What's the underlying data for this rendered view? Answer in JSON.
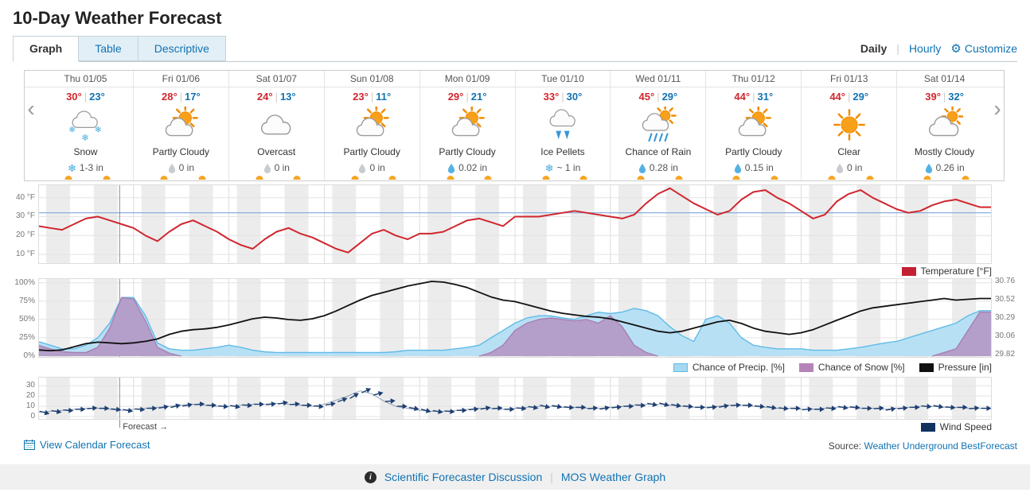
{
  "page": {
    "title": "10-Day Weather Forecast"
  },
  "tabs": [
    {
      "label": "Graph",
      "active": true
    },
    {
      "label": "Table",
      "active": false
    },
    {
      "label": "Descriptive",
      "active": false
    }
  ],
  "view_controls": {
    "daily_label": "Daily",
    "hourly_label": "Hourly",
    "customize_label": "Customize"
  },
  "nav": {
    "prev": "‹",
    "next": "›"
  },
  "separators": {
    "bar": "|"
  },
  "icons": {
    "gear": "⚙",
    "info": "i"
  },
  "days": [
    {
      "label": "Thu 01/05",
      "high": "30°",
      "low": "23°",
      "icon": "snow",
      "condition": "Snow",
      "precip_icon": "snowflake-blue",
      "precip": "1-3 in"
    },
    {
      "label": "Fri 01/06",
      "high": "28°",
      "low": "17°",
      "icon": "partly-cloudy",
      "condition": "Partly Cloudy",
      "precip_icon": "drop-gray",
      "precip": "0 in"
    },
    {
      "label": "Sat 01/07",
      "high": "24°",
      "low": "13°",
      "icon": "cloudy",
      "condition": "Overcast",
      "precip_icon": "drop-gray",
      "precip": "0 in"
    },
    {
      "label": "Sun 01/08",
      "high": "23°",
      "low": "11°",
      "icon": "partly-cloudy",
      "condition": "Partly Cloudy",
      "precip_icon": "drop-gray",
      "precip": "0 in"
    },
    {
      "label": "Mon 01/09",
      "high": "29°",
      "low": "21°",
      "icon": "partly-cloudy",
      "condition": "Partly Cloudy",
      "precip_icon": "drop-blue",
      "precip": "0.02 in"
    },
    {
      "label": "Tue 01/10",
      "high": "33°",
      "low": "30°",
      "icon": "ice-pellets",
      "condition": "Ice Pellets",
      "precip_icon": "snowflake-blue",
      "precip": "~ 1 in"
    },
    {
      "label": "Wed 01/11",
      "high": "45°",
      "low": "29°",
      "icon": "chance-rain",
      "condition": "Chance of Rain",
      "precip_icon": "drop-blue",
      "precip": "0.28 in"
    },
    {
      "label": "Thu 01/12",
      "high": "44°",
      "low": "31°",
      "icon": "partly-cloudy",
      "condition": "Partly Cloudy",
      "precip_icon": "drop-blue",
      "precip": "0.15 in"
    },
    {
      "label": "Fri 01/13",
      "high": "44°",
      "low": "29°",
      "icon": "clear",
      "condition": "Clear",
      "precip_icon": "drop-gray",
      "precip": "0 in"
    },
    {
      "label": "Sat 01/14",
      "high": "39°",
      "low": "32°",
      "icon": "mostly-cloudy",
      "condition": "Mostly Cloudy",
      "precip_icon": "drop-blue",
      "precip": "0.26 in"
    }
  ],
  "forecast_marker": {
    "hour": 20.5,
    "label": "Forecast →"
  },
  "chart_data": [
    {
      "id": "temperature",
      "type": "line",
      "x_step_hours": 3,
      "x_total_hours": 240,
      "ylim": [
        5,
        47
      ],
      "yticks": [
        {
          "value": 40,
          "label": "40 °F"
        },
        {
          "value": 30,
          "label": "30 °F"
        },
        {
          "value": 20,
          "label": "20 °F"
        },
        {
          "value": 10,
          "label": "10 °F"
        }
      ],
      "reference_line": {
        "value": 32,
        "color": "#7DA7D9"
      },
      "series": [
        {
          "name": "Temperature [°F]",
          "color": "#D0262E",
          "values": [
            25,
            24,
            23,
            26,
            29,
            30,
            28,
            26,
            24,
            20,
            17,
            22,
            26,
            28,
            25,
            22,
            18,
            15,
            13,
            18,
            22,
            24,
            21,
            19,
            16,
            13,
            11,
            16,
            21,
            23,
            20,
            18,
            21,
            21,
            22,
            25,
            28,
            29,
            27,
            25,
            30,
            30,
            30,
            31,
            32,
            33,
            32,
            31,
            30,
            29,
            31,
            37,
            42,
            45,
            41,
            37,
            34,
            31,
            33,
            39,
            43,
            44,
            40,
            37,
            33,
            29,
            31,
            38,
            42,
            44,
            40,
            37,
            34,
            32,
            33,
            36,
            38,
            39,
            37,
            35
          ]
        }
      ],
      "legend": [
        {
          "label": "Temperature [°F]",
          "color": "#C32032"
        }
      ]
    },
    {
      "id": "precip_pressure",
      "type": "area+line",
      "x_step_hours": 3,
      "x_total_hours": 240,
      "ylim_left": [
        0,
        104
      ],
      "ylim_right": [
        29.8,
        30.78
      ],
      "yticks_left": [
        {
          "value": 100,
          "label": "100%"
        },
        {
          "value": 75,
          "label": "75%"
        },
        {
          "value": 50,
          "label": "50%"
        },
        {
          "value": 25,
          "label": "25%"
        },
        {
          "value": 0,
          "label": "0%"
        }
      ],
      "yticks_right": [
        {
          "value": 30.76,
          "label": "30.76"
        },
        {
          "value": 30.52,
          "label": "30.52"
        },
        {
          "value": 30.29,
          "label": "30.29"
        },
        {
          "value": 30.06,
          "label": "30.06"
        },
        {
          "value": 29.82,
          "label": "29.82"
        }
      ],
      "series": [
        {
          "name": "Chance of Precip. [%]",
          "kind": "area",
          "axis": "left",
          "fill": "#B8E0F4",
          "stroke": "#5FBBE8",
          "values": [
            20,
            15,
            10,
            10,
            15,
            25,
            45,
            80,
            80,
            55,
            18,
            10,
            8,
            8,
            10,
            12,
            15,
            12,
            8,
            6,
            5,
            5,
            5,
            5,
            5,
            5,
            5,
            5,
            5,
            5,
            6,
            8,
            8,
            8,
            8,
            10,
            12,
            15,
            25,
            35,
            45,
            52,
            55,
            55,
            52,
            50,
            55,
            60,
            58,
            60,
            65,
            62,
            55,
            40,
            28,
            20,
            50,
            55,
            45,
            25,
            15,
            12,
            10,
            10,
            10,
            8,
            8,
            8,
            10,
            12,
            15,
            18,
            20,
            25,
            30,
            35,
            40,
            45,
            55,
            62
          ]
        },
        {
          "name": "Chance of Snow [%]",
          "kind": "area",
          "axis": "left",
          "fill": "rgba(178,124,180,0.65)",
          "stroke": "#A77FB5",
          "values": [
            15,
            10,
            6,
            5,
            5,
            12,
            38,
            80,
            78,
            48,
            12,
            4,
            0,
            0,
            0,
            0,
            0,
            0,
            0,
            0,
            0,
            0,
            0,
            0,
            0,
            0,
            0,
            0,
            0,
            0,
            0,
            0,
            0,
            0,
            0,
            0,
            0,
            0,
            5,
            15,
            35,
            45,
            50,
            52,
            50,
            48,
            50,
            45,
            55,
            40,
            15,
            5,
            0,
            0,
            0,
            0,
            0,
            0,
            0,
            0,
            0,
            0,
            0,
            0,
            0,
            0,
            0,
            0,
            0,
            0,
            0,
            0,
            0,
            0,
            0,
            0,
            5,
            10,
            35,
            60
          ]
        },
        {
          "name": "Pressure [in]",
          "kind": "line",
          "axis": "right",
          "color": "#111111",
          "values": [
            29.88,
            29.87,
            29.88,
            29.92,
            29.96,
            29.98,
            29.97,
            29.96,
            29.97,
            29.99,
            30.02,
            30.08,
            30.12,
            30.14,
            30.15,
            30.17,
            30.2,
            30.24,
            30.28,
            30.3,
            30.29,
            30.27,
            30.26,
            30.28,
            30.32,
            30.38,
            30.45,
            30.52,
            30.58,
            30.62,
            30.66,
            30.7,
            30.73,
            30.76,
            30.75,
            30.72,
            30.68,
            30.62,
            30.56,
            30.52,
            30.5,
            30.46,
            30.42,
            30.38,
            30.35,
            30.33,
            30.31,
            30.3,
            30.28,
            30.24,
            30.2,
            30.16,
            30.12,
            30.1,
            30.12,
            30.16,
            30.2,
            30.24,
            30.26,
            30.22,
            30.16,
            30.12,
            30.1,
            30.08,
            30.1,
            30.14,
            30.2,
            30.26,
            30.32,
            30.38,
            30.42,
            30.44,
            30.46,
            30.48,
            30.5,
            30.52,
            30.54,
            30.52,
            30.53,
            30.54
          ]
        }
      ],
      "legend": [
        {
          "label": "Chance of Precip. [%]",
          "color": "#A5D9F0",
          "border": "#5FBBE8"
        },
        {
          "label": "Chance of Snow [%]",
          "color": "#B583B8"
        },
        {
          "label": "Pressure [in]",
          "color": "#111111"
        }
      ]
    },
    {
      "id": "wind",
      "type": "wind-barbs",
      "x_step_hours": 3,
      "x_total_hours": 240,
      "ylim": [
        0,
        34
      ],
      "yticks": [
        {
          "value": 30,
          "label": "30"
        },
        {
          "value": 20,
          "label": "20"
        },
        {
          "value": 10,
          "label": "10"
        },
        {
          "value": 0,
          "label": "0"
        }
      ],
      "series": [
        {
          "name": "Wind Speed",
          "color": "#1E3F72",
          "speeds": [
            4,
            5,
            6,
            7,
            8,
            8,
            7,
            6,
            7,
            8,
            9,
            10,
            11,
            12,
            11,
            10,
            10,
            11,
            12,
            12,
            13,
            12,
            11,
            10,
            12,
            16,
            20,
            25,
            22,
            15,
            10,
            8,
            6,
            5,
            5,
            6,
            7,
            8,
            8,
            7,
            8,
            9,
            10,
            10,
            9,
            9,
            8,
            8,
            9,
            10,
            11,
            12,
            12,
            11,
            10,
            9,
            9,
            10,
            11,
            11,
            10,
            9,
            8,
            8,
            7,
            7,
            8,
            9,
            9,
            8,
            8,
            7,
            8,
            9,
            10,
            10,
            9,
            9,
            8,
            8
          ],
          "angles": [
            15,
            10,
            5,
            0,
            -5,
            0,
            5,
            10,
            5,
            0,
            -10,
            -15,
            -10,
            -5,
            0,
            5,
            10,
            5,
            0,
            -5,
            -10,
            -5,
            0,
            5,
            -10,
            -20,
            -30,
            -25,
            -15,
            -5,
            0,
            10,
            15,
            10,
            5,
            0,
            -5,
            -10,
            -5,
            0,
            5,
            10,
            15,
            10,
            5,
            0,
            -5,
            -10,
            -5,
            0,
            5,
            10,
            15,
            10,
            5,
            0,
            -5,
            -10,
            -5,
            0,
            5,
            10,
            5,
            0,
            -5,
            0,
            5,
            10,
            5,
            0,
            -5,
            -10,
            -5,
            0,
            5,
            10,
            5,
            0,
            -5,
            0
          ]
        }
      ],
      "legend": [
        {
          "label": "Wind Speed",
          "color": "#13335F"
        }
      ]
    }
  ],
  "footer_links": {
    "view_calendar": "View Calendar Forecast",
    "source_prefix": "Source:",
    "source_link": "Weather Underground BestForecast",
    "discussion": "Scientific Forecaster Discussion",
    "mos": "MOS Weather Graph"
  }
}
